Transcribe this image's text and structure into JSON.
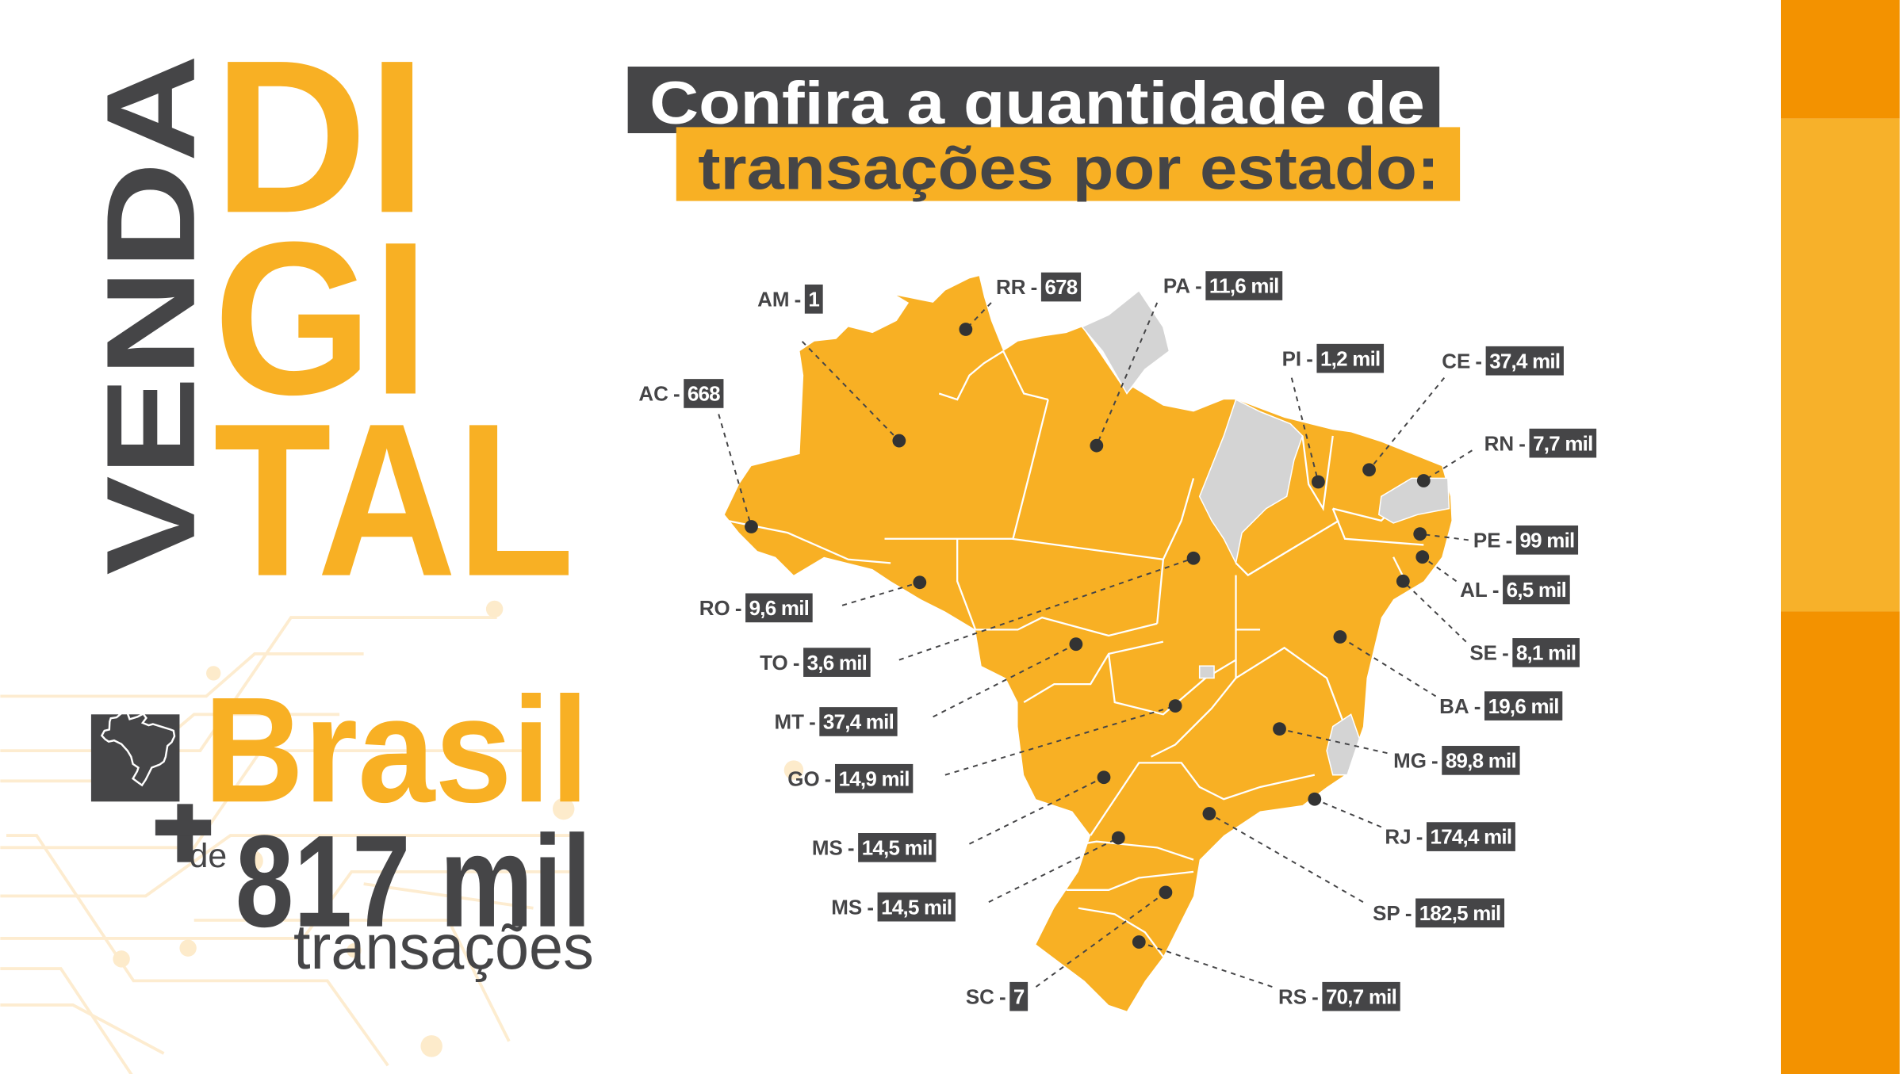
{
  "colors": {
    "orange": "#F8B024",
    "dark": "#454547",
    "stripe_dark": "#F39200",
    "stripe_light": "#F7B12A",
    "no_data": "#D4D4D4"
  },
  "headline": {
    "vertical": "VENDA",
    "line1": "DI",
    "line2": "GI",
    "line3": "TAL"
  },
  "title": {
    "line1": "Confira a quantidade de",
    "line2": "transações por estado:"
  },
  "summary": {
    "icon": "brazil-map-icon",
    "country": "Brasil",
    "plus": "+",
    "prefix": "de",
    "amount": "817 mil",
    "unit": "transações"
  },
  "map": {
    "separator": "-",
    "states": [
      {
        "code": "AM",
        "value": "1"
      },
      {
        "code": "RR",
        "value": "678"
      },
      {
        "code": "PA",
        "value": "11,6 mil"
      },
      {
        "code": "AC",
        "value": "668"
      },
      {
        "code": "PI",
        "value": "1,2 mil"
      },
      {
        "code": "CE",
        "value": "37,4 mil"
      },
      {
        "code": "RN",
        "value": "7,7 mil"
      },
      {
        "code": "PE",
        "value": "99 mil"
      },
      {
        "code": "AL",
        "value": "6,5 mil"
      },
      {
        "code": "SE",
        "value": "8,1 mil"
      },
      {
        "code": "BA",
        "value": "19,6 mil"
      },
      {
        "code": "MG",
        "value": "89,8 mil"
      },
      {
        "code": "RJ",
        "value": "174,4 mil"
      },
      {
        "code": "SP",
        "value": "182,5 mil"
      },
      {
        "code": "RS",
        "value": "70,7 mil"
      },
      {
        "code": "SC",
        "value": "7"
      },
      {
        "code": "RO",
        "value": "9,6 mil"
      },
      {
        "code": "TO",
        "value": "3,6 mil"
      },
      {
        "code": "MT",
        "value": "37,4 mil"
      },
      {
        "code": "GO",
        "value": "14,9 mil"
      },
      {
        "code": "MS",
        "value": "14,5 mil"
      },
      {
        "code": "MS",
        "value": "14,5 mil"
      }
    ]
  }
}
